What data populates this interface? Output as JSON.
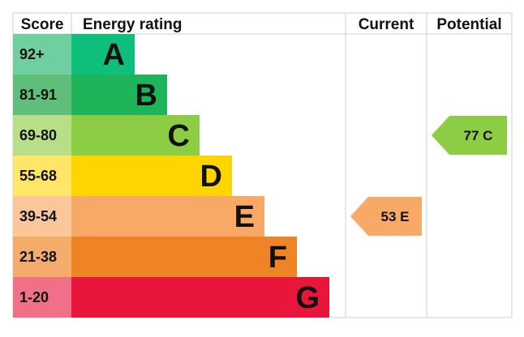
{
  "chart_data": {
    "type": "table",
    "headers": {
      "score": "Score",
      "rating": "Energy rating",
      "current": "Current",
      "potential": "Potential"
    },
    "bands": [
      {
        "score": "92+",
        "letter": "A",
        "color": "#0ebf7b",
        "score_bg": "#6fcf9f"
      },
      {
        "score": "81-91",
        "letter": "B",
        "color": "#1db45a",
        "score_bg": "#5fbf7a"
      },
      {
        "score": "69-80",
        "letter": "C",
        "color": "#8dcd44",
        "score_bg": "#b6df86"
      },
      {
        "score": "55-68",
        "letter": "D",
        "color": "#ffd500",
        "score_bg": "#ffe566"
      },
      {
        "score": "39-54",
        "letter": "E",
        "color": "#f9a966",
        "score_bg": "#fbc69a"
      },
      {
        "score": "21-38",
        "letter": "F",
        "color": "#ef8426",
        "score_bg": "#f4ab6b"
      },
      {
        "score": "1-20",
        "letter": "G",
        "color": "#e8163a",
        "score_bg": "#f07187"
      }
    ],
    "current": {
      "value": 53,
      "letter": "E",
      "label": "53 E",
      "color": "#f9a966"
    },
    "potential": {
      "value": 77,
      "letter": "C",
      "label": "77 C",
      "color": "#8dcd44"
    }
  }
}
